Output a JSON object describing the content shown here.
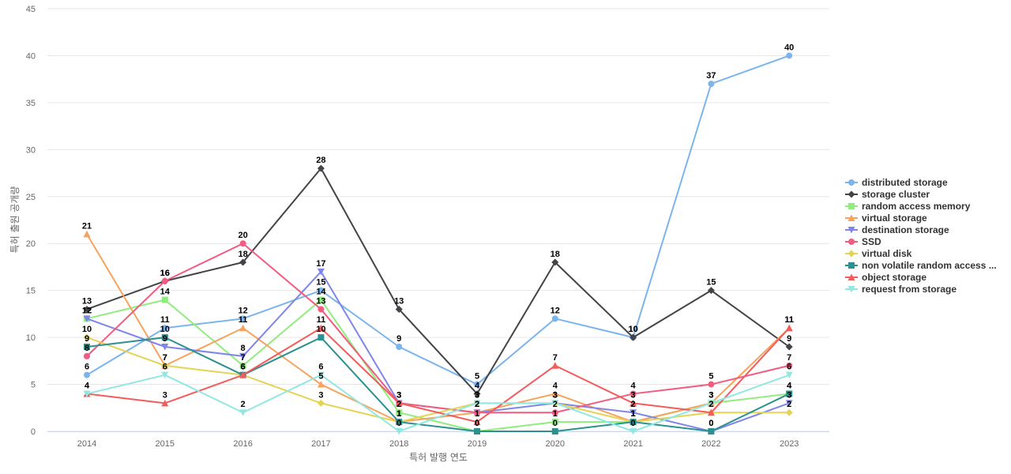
{
  "chart_data": {
    "type": "line",
    "xlabel": "특허 발행 연도",
    "ylabel": "특허 출원 공개량",
    "ylim": [
      0,
      45
    ],
    "yticks": [
      0,
      5,
      10,
      15,
      20,
      25,
      30,
      35,
      40,
      45
    ],
    "grid": true,
    "legend_position": "right",
    "categories": [
      "2014",
      "2015",
      "2016",
      "2017",
      "2018",
      "2019",
      "2020",
      "2021",
      "2022",
      "2023"
    ],
    "series": [
      {
        "name": "distributed storage",
        "color": "#7cb5ec",
        "marker": "circle",
        "values": [
          6,
          11,
          12,
          15,
          9,
          5,
          12,
          10,
          37,
          40
        ]
      },
      {
        "name": "storage cluster",
        "color": "#434348",
        "marker": "diamond",
        "values": [
          13,
          16,
          18,
          28,
          13,
          4,
          18,
          10,
          15,
          9
        ]
      },
      {
        "name": "random access memory",
        "color": "#90ed7d",
        "marker": "square",
        "values": [
          12,
          14,
          7,
          14,
          2,
          0,
          1,
          1,
          3,
          4
        ]
      },
      {
        "name": "virtual storage",
        "color": "#f7a35c",
        "marker": "triangle",
        "values": [
          21,
          7,
          11,
          5,
          1,
          2,
          4,
          1,
          3,
          11
        ]
      },
      {
        "name": "destination storage",
        "color": "#8085e9",
        "marker": "triangle-down",
        "values": [
          12,
          9,
          8,
          17,
          3,
          2,
          3,
          2,
          0,
          3
        ]
      },
      {
        "name": "SSD",
        "color": "#f15c80",
        "marker": "circle",
        "values": [
          8,
          16,
          20,
          13,
          3,
          2,
          2,
          4,
          5,
          7
        ]
      },
      {
        "name": "virtual disk",
        "color": "#e4d354",
        "marker": "diamond",
        "values": [
          10,
          7,
          6,
          3,
          1,
          3,
          3,
          1,
          2,
          2
        ]
      },
      {
        "name": "non volatile random access ...",
        "color": "#2b908f",
        "marker": "square",
        "values": [
          9,
          10,
          6,
          10,
          1,
          0,
          0,
          1,
          0,
          4
        ]
      },
      {
        "name": "object storage",
        "color": "#f45b5b",
        "marker": "triangle",
        "values": [
          4,
          3,
          6,
          11,
          3,
          1,
          7,
          3,
          2,
          11
        ]
      },
      {
        "name": "request from storage",
        "color": "#91e8e1",
        "marker": "triangle-down",
        "values": [
          4,
          6,
          2,
          6,
          0,
          3,
          3,
          0,
          3,
          6
        ]
      }
    ]
  }
}
